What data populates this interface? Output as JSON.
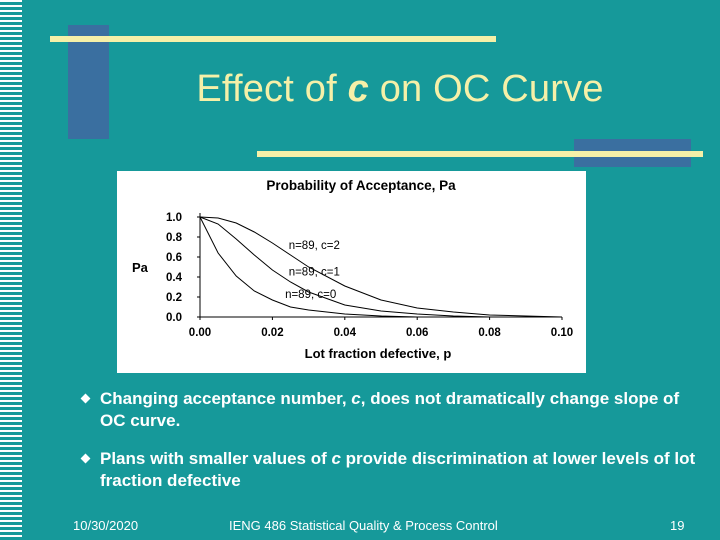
{
  "slide": {
    "title_prefix": "Effect of ",
    "title_italic": "c",
    "title_suffix": " on OC Curve"
  },
  "bullets": [
    {
      "before": "Changing acceptance number, ",
      "italic": "c",
      "after": ", does not dramatically change slope of OC curve."
    },
    {
      "before": "Plans with smaller values of ",
      "italic": "c",
      "after": " provide discrimination at lower levels of lot fraction defective"
    }
  ],
  "footer": {
    "date": "10/30/2020",
    "course": "IENG 486 Statistical Quality & Process Control",
    "page": "19"
  },
  "colors": {
    "background": "#16999a",
    "title": "#f5f0a8",
    "accent_bar": "#f5f0a8",
    "accent_block": "#3a6fa0"
  },
  "chart_data": {
    "type": "line",
    "title": "Probability of Acceptance, Pa",
    "xlabel": "Lot fraction defective, p",
    "ylabel": "Pa",
    "xlim": [
      0,
      0.1
    ],
    "ylim": [
      0,
      1.0
    ],
    "xticks": [
      "0.00",
      "0.02",
      "0.04",
      "0.06",
      "0.08",
      "0.10"
    ],
    "yticks": [
      "0.0",
      "0.2",
      "0.4",
      "0.6",
      "0.8",
      "1.0"
    ],
    "grid": false,
    "series": [
      {
        "name": "n=89, c=2",
        "x": [
          0,
          0.005,
          0.01,
          0.015,
          0.02,
          0.025,
          0.03,
          0.04,
          0.05,
          0.06,
          0.07,
          0.08,
          0.09,
          0.1
        ],
        "y": [
          1.0,
          0.99,
          0.94,
          0.85,
          0.74,
          0.62,
          0.5,
          0.31,
          0.17,
          0.09,
          0.05,
          0.02,
          0.01,
          0.0
        ]
      },
      {
        "name": "n=89, c=1",
        "x": [
          0,
          0.005,
          0.01,
          0.015,
          0.02,
          0.025,
          0.03,
          0.04,
          0.05,
          0.06,
          0.07,
          0.08,
          0.09,
          0.1
        ],
        "y": [
          1.0,
          0.93,
          0.78,
          0.62,
          0.47,
          0.35,
          0.25,
          0.12,
          0.06,
          0.03,
          0.01,
          0.0,
          0.0,
          0.0
        ]
      },
      {
        "name": "n=89, c=0",
        "x": [
          0,
          0.005,
          0.01,
          0.015,
          0.02,
          0.025,
          0.03,
          0.04,
          0.05,
          0.06,
          0.07,
          0.08,
          0.09,
          0.1
        ],
        "y": [
          1.0,
          0.64,
          0.41,
          0.26,
          0.17,
          0.1,
          0.07,
          0.03,
          0.01,
          0.0,
          0.0,
          0.0,
          0.0,
          0.0
        ]
      }
    ]
  }
}
